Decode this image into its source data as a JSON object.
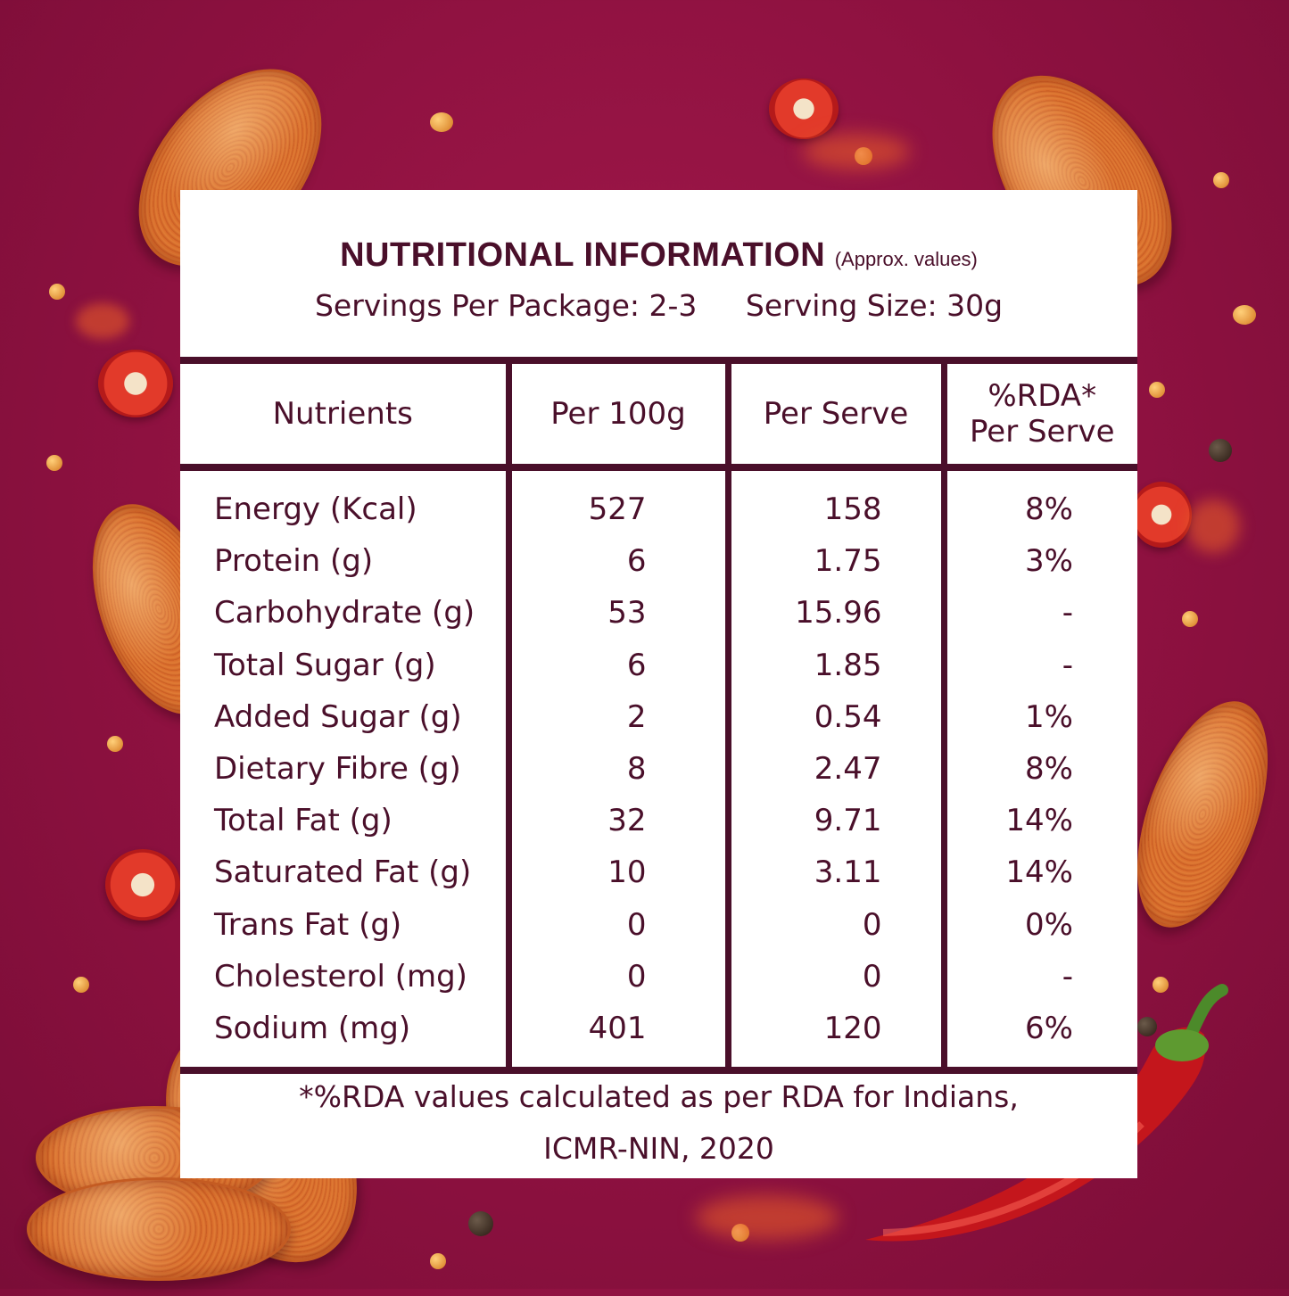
{
  "header": {
    "title": "NUTRITIONAL INFORMATION",
    "subtitle": "(Approx. values)",
    "servings_per_package": "Servings Per Package: 2-3",
    "serving_size": "Serving Size: 30g"
  },
  "table": {
    "columns": [
      "Nutrients",
      "Per 100g",
      "Per Serve",
      "%RDA*",
      "Per Serve"
    ],
    "rows": [
      {
        "nutrient": "Energy (Kcal)",
        "per100g": "527",
        "perServe": "158",
        "rda": "8%"
      },
      {
        "nutrient": "Protein (g)",
        "per100g": "6",
        "perServe": "1.75",
        "rda": "3%"
      },
      {
        "nutrient": "Carbohydrate (g)",
        "per100g": "53",
        "perServe": "15.96",
        "rda": "-"
      },
      {
        "nutrient": "Total Sugar (g)",
        "per100g": "6",
        "perServe": "1.85",
        "rda": "-"
      },
      {
        "nutrient": "Added Sugar (g)",
        "per100g": "2",
        "perServe": "0.54",
        "rda": "1%"
      },
      {
        "nutrient": "Dietary Fibre (g)",
        "per100g": "8",
        "perServe": "2.47",
        "rda": "8%"
      },
      {
        "nutrient": "Total Fat (g)",
        "per100g": "32",
        "perServe": "9.71",
        "rda": "14%"
      },
      {
        "nutrient": "Saturated Fat (g)",
        "per100g": "10",
        "perServe": "3.11",
        "rda": "14%"
      },
      {
        "nutrient": "Trans Fat (g)",
        "per100g": "0",
        "perServe": "0",
        "rda": "0%"
      },
      {
        "nutrient": "Cholesterol (mg)",
        "per100g": "0",
        "perServe": "0",
        "rda": "-"
      },
      {
        "nutrient": "Sodium (mg)",
        "per100g": "401",
        "perServe": "120",
        "rda": "6%"
      }
    ]
  },
  "footnote": {
    "line1": "*%RDA values calculated as per RDA for Indians,",
    "line2": "ICMR-NIN, 2020"
  },
  "colors": {
    "background": "#8e1140",
    "text": "#4a0f2a",
    "card": "#ffffff"
  }
}
